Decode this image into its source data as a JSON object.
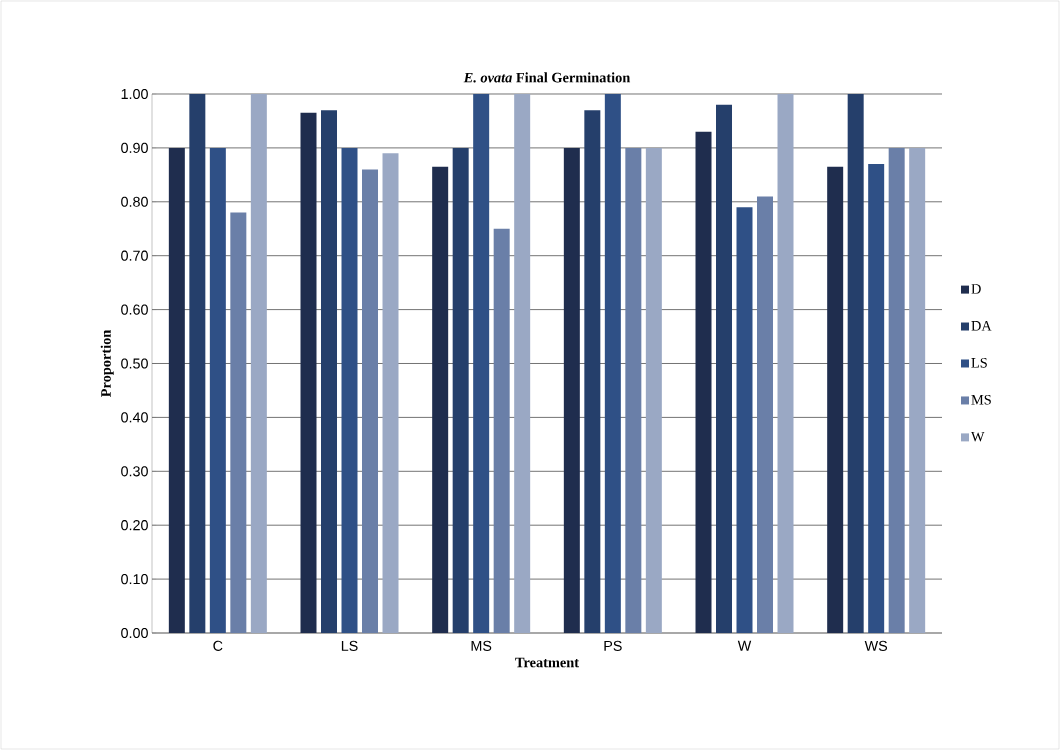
{
  "chart_data": {
    "type": "bar",
    "title": "*E. ovata* Final Germination",
    "xlabel": "Treatment",
    "ylabel": "Proportion",
    "categories": [
      "C",
      "LS",
      "MS",
      "PS",
      "W",
      "WS"
    ],
    "series": [
      {
        "name": "D",
        "color": "#1f2d4e",
        "values": [
          0.9,
          0.965,
          0.865,
          0.9,
          0.93,
          0.865
        ]
      },
      {
        "name": "DA",
        "color": "#253f6b",
        "values": [
          1.0,
          0.97,
          0.9,
          0.97,
          0.98,
          1.0
        ]
      },
      {
        "name": "LS",
        "color": "#2f5086",
        "values": [
          0.9,
          0.9,
          1.0,
          1.0,
          0.79,
          0.87
        ]
      },
      {
        "name": "MS",
        "color": "#6a7fa8",
        "values": [
          0.78,
          0.86,
          0.75,
          0.9,
          0.81,
          0.9
        ]
      },
      {
        "name": "W",
        "color": "#9aa8c4",
        "values": [
          1.0,
          0.89,
          1.0,
          0.9,
          1.0,
          0.9
        ]
      }
    ],
    "ylim": [
      0,
      1
    ],
    "yticks": [
      {
        "value": 0,
        "label": "0.00"
      },
      {
        "value": 0.1,
        "label": "0.10"
      },
      {
        "value": 0.2,
        "label": "0.20"
      },
      {
        "value": 0.3,
        "label": "0.30"
      },
      {
        "value": 0.4,
        "label": "0.40"
      },
      {
        "value": 0.5,
        "label": "0.50"
      },
      {
        "value": 0.6,
        "label": "0.60"
      },
      {
        "value": 0.7,
        "label": "0.70"
      },
      {
        "value": 0.8,
        "label": "0.80"
      },
      {
        "value": 0.9,
        "label": "0.90"
      },
      {
        "value": 1,
        "label": "1.00"
      }
    ],
    "grid": "y",
    "legend": "right"
  }
}
